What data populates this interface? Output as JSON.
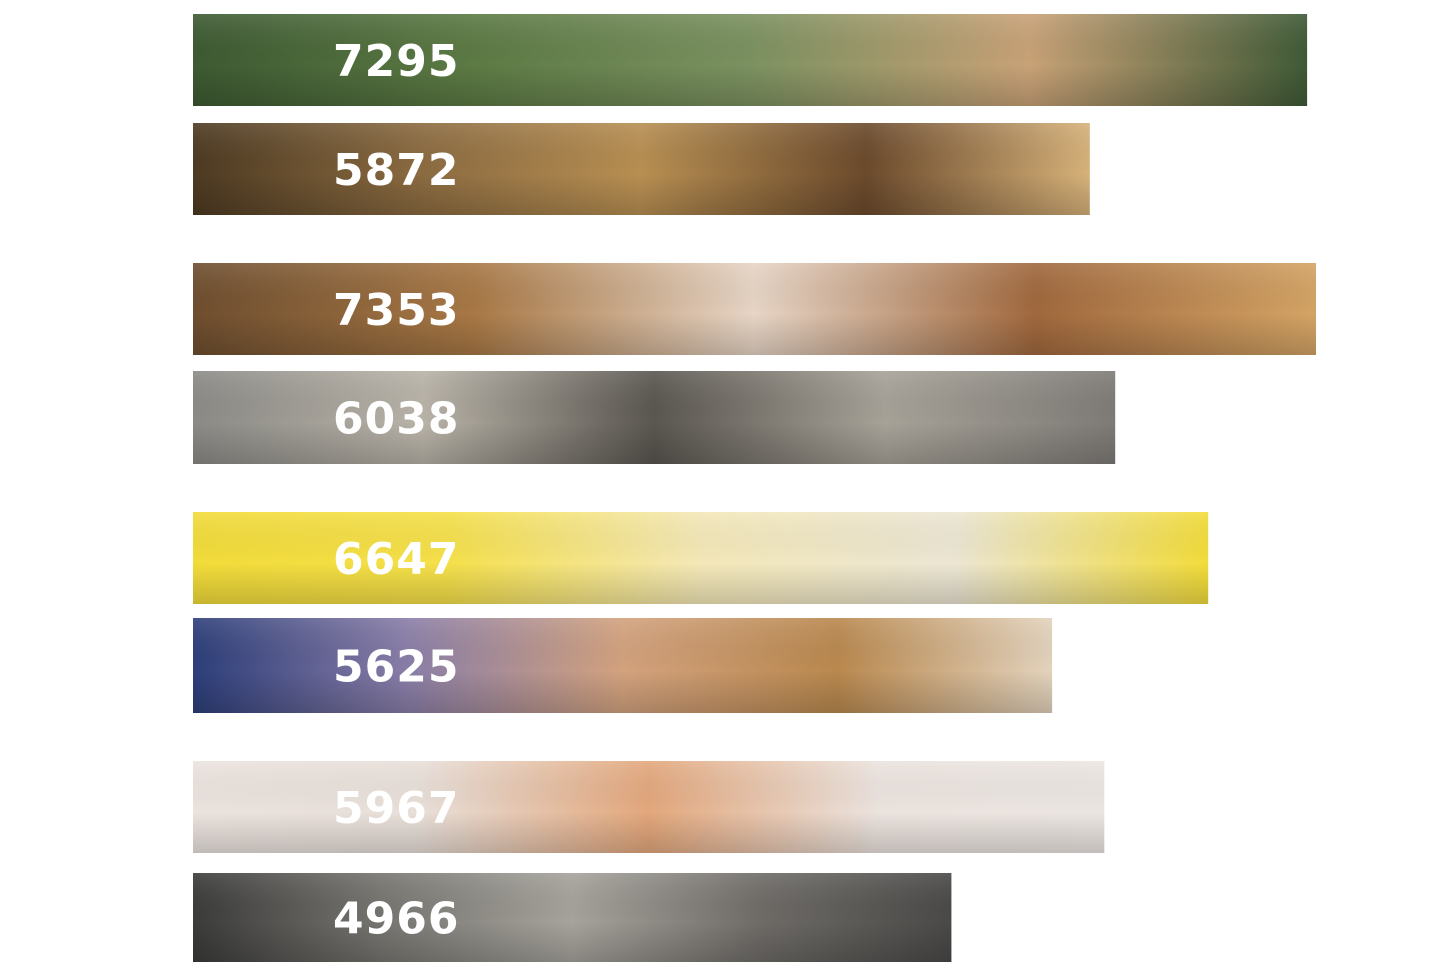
{
  "chart_data": {
    "type": "bar",
    "orientation": "horizontal",
    "title": "",
    "xlabel": "",
    "ylabel": "",
    "xlim": [
      0,
      7353
    ],
    "grid": false,
    "legend": "none",
    "values": [
      7295,
      5872,
      7353,
      6038,
      6647,
      5625,
      5967,
      4966
    ],
    "labels": [
      "7295",
      "5872",
      "7353",
      "6038",
      "6647",
      "5625",
      "5967",
      "4966"
    ],
    "bar_styles": [
      {
        "photo": "puppy-on-grass",
        "colors": [
          "#3d5a32",
          "#5c7a44",
          "#7b9160",
          "#c9a277",
          "#3f5a36"
        ]
      },
      {
        "photo": "poodle-walk",
        "colors": [
          "#4d3a22",
          "#8a6a40",
          "#b88f52",
          "#6b4a2c",
          "#d7b27a"
        ]
      },
      {
        "photo": "spotted-dog-sunset",
        "colors": [
          "#6e4e2f",
          "#a87845",
          "#e7d5c6",
          "#a0683d",
          "#d4a465"
        ]
      },
      {
        "photo": "kittens-in-cage",
        "colors": [
          "#8b8a86",
          "#b9b3a8",
          "#5a5650",
          "#a7a298",
          "#7e7b77"
        ]
      },
      {
        "photo": "white-puppy-yellow",
        "colors": [
          "#f2dc3a",
          "#f5e04a",
          "#f4e8b8",
          "#ece6d4",
          "#f2dc3a"
        ]
      },
      {
        "photo": "hugging-dog",
        "colors": [
          "#2d3e7a",
          "#8a7ea8",
          "#d3a27e",
          "#b9884e",
          "#e3d3bd"
        ]
      },
      {
        "photo": "smiling-kitten",
        "colors": [
          "#ebe3de",
          "#e8dfd9",
          "#e3a77c",
          "#ebe3de",
          "#ece6e2"
        ]
      },
      {
        "photo": "animal-shelter",
        "colors": [
          "#3b3b3a",
          "#777570",
          "#a6a39c",
          "#6e6b67",
          "#4a4947"
        ]
      }
    ]
  }
}
